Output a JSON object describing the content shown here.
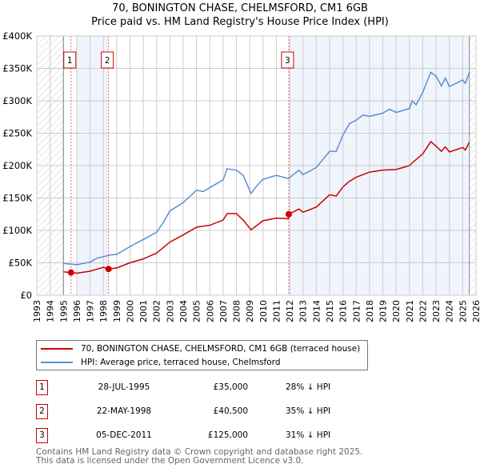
{
  "chart_data": {
    "type": "line",
    "title": "70, BONINGTON CHASE, CHELMSFORD, CM1 6GB",
    "subtitle": "Price paid vs. HM Land Registry's House Price Index (HPI)",
    "xlim": [
      1993,
      2026
    ],
    "ylim": [
      0,
      400000
    ],
    "x_ticks": [
      "1993",
      "1994",
      "1995",
      "1996",
      "1997",
      "1998",
      "1999",
      "2000",
      "2001",
      "2002",
      "2003",
      "2004",
      "2005",
      "2006",
      "2007",
      "2008",
      "2009",
      "2010",
      "2011",
      "2012",
      "2013",
      "2014",
      "2015",
      "2016",
      "2017",
      "2018",
      "2019",
      "2020",
      "2021",
      "2022",
      "2023",
      "2024",
      "2025",
      "2026"
    ],
    "y_ticks": [
      {
        "v": 0,
        "label": "£0"
      },
      {
        "v": 50000,
        "label": "£50K"
      },
      {
        "v": 100000,
        "label": "£100K"
      },
      {
        "v": 150000,
        "label": "£150K"
      },
      {
        "v": 200000,
        "label": "£200K"
      },
      {
        "v": 250000,
        "label": "£250K"
      },
      {
        "v": 300000,
        "label": "£300K"
      },
      {
        "v": 350000,
        "label": "£350K"
      },
      {
        "v": 400000,
        "label": "£400K"
      }
    ],
    "grid": true,
    "hatched_ranges": [
      [
        1993,
        1995
      ],
      [
        2025.5,
        2026
      ]
    ],
    "shaded_ranges": [
      [
        1996,
        1998.39
      ],
      [
        2011.93,
        2025.5
      ]
    ],
    "series": [
      {
        "name": "70, BONINGTON CHASE, CHELMSFORD, CM1 6GB (terraced house)",
        "color": "#cc0000",
        "x": [
          1995,
          1995.6,
          1996,
          1997,
          1998,
          1998.4,
          1999,
          2000,
          2001,
          2002,
          2003,
          2004,
          2005,
          2006,
          2007,
          2007.3,
          2008,
          2008.5,
          2009.1,
          2010,
          2011,
          2011.9,
          2011.93,
          2012.7,
          2013,
          2014,
          2015,
          2015.5,
          2016,
          2016.5,
          2017,
          2018,
          2019,
          2020,
          2021,
          2021.3,
          2022,
          2022.6,
          2023,
          2023.4,
          2023.7,
          2024,
          2025,
          2025.2,
          2025.5
        ],
        "y": [
          36000,
          35000,
          34000,
          37000,
          43000,
          40500,
          42000,
          50000,
          56000,
          65000,
          82000,
          93000,
          105000,
          108000,
          116000,
          126000,
          126000,
          116000,
          101000,
          115000,
          119000,
          118000,
          125000,
          133000,
          128000,
          136000,
          155000,
          153000,
          167000,
          176000,
          182000,
          190000,
          193000,
          194000,
          200000,
          206000,
          218000,
          237000,
          230000,
          222000,
          229000,
          221000,
          228000,
          224000,
          236000
        ]
      },
      {
        "name": "HPI: Average price, terraced house, Chelmsford",
        "color": "#5b8fd4",
        "x": [
          1995,
          1996,
          1997,
          1997.5,
          1998.5,
          1999,
          2000,
          2001,
          2002,
          2002.5,
          2003,
          2004,
          2005,
          2005.5,
          2006,
          2007,
          2007.3,
          2008,
          2008.5,
          2009.1,
          2009.5,
          2010,
          2011,
          2011.9,
          2012.7,
          2013,
          2014,
          2015,
          2015.5,
          2016,
          2016.5,
          2017,
          2017.5,
          2018,
          2019,
          2019.5,
          2020,
          2021,
          2021.2,
          2021.5,
          2022,
          2022.6,
          2023,
          2023.4,
          2023.7,
          2024,
          2025,
          2025.2,
          2025.5
        ],
        "y": [
          49000,
          47000,
          51000,
          57000,
          62000,
          63000,
          75000,
          86000,
          97000,
          112000,
          130000,
          143000,
          162000,
          160000,
          166000,
          178000,
          195000,
          193000,
          185000,
          157000,
          168000,
          179000,
          185000,
          180000,
          193000,
          186000,
          197000,
          222000,
          222000,
          247000,
          265000,
          270000,
          278000,
          276000,
          281000,
          287000,
          282000,
          288000,
          300000,
          294000,
          313000,
          344000,
          338000,
          323000,
          335000,
          322000,
          332000,
          327000,
          344000
        ]
      }
    ],
    "sales": [
      {
        "n": "1",
        "x": 1995.57,
        "price": 35000,
        "date": "28-JUL-1995",
        "price_label": "£35,000",
        "hpi": "28% ↓ HPI"
      },
      {
        "n": "2",
        "x": 1998.39,
        "price": 40500,
        "date": "22-MAY-1998",
        "price_label": "£40,500",
        "hpi": "35% ↓ HPI"
      },
      {
        "n": "3",
        "x": 2011.93,
        "price": 125000,
        "date": "05-DEC-2011",
        "price_label": "£125,000",
        "hpi": "31% ↓ HPI"
      }
    ],
    "legend_placement": "below"
  },
  "footer": {
    "line1": "Contains HM Land Registry data © Crown copyright and database right 2025.",
    "line2": "This data is licensed under the Open Government Licence v3.0."
  }
}
